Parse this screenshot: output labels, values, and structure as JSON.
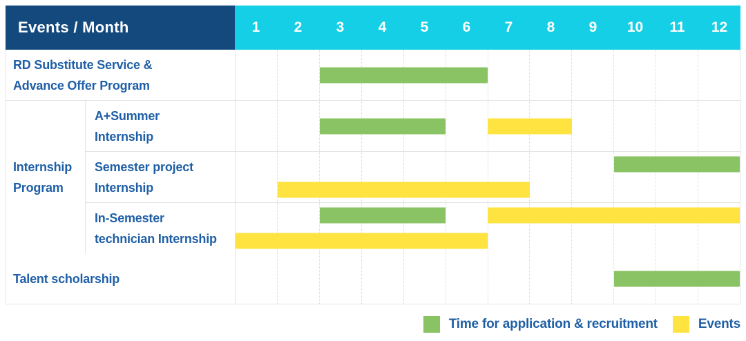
{
  "header": {
    "label": "Events / Month",
    "months": [
      "1",
      "2",
      "3",
      "4",
      "5",
      "6",
      "7",
      "8",
      "9",
      "10",
      "11",
      "12"
    ]
  },
  "group": {
    "label": "Internship\nProgram"
  },
  "rows": [
    {
      "label": "RD Substitute Service &\nAdvance Offer Program",
      "group": null,
      "lines": [
        [
          {
            "color": "green",
            "start": 3,
            "end": 6
          }
        ]
      ]
    },
    {
      "label": "A+Summer\nInternship",
      "group": "Internship Program",
      "lines": [
        [
          {
            "color": "green",
            "start": 3,
            "end": 5
          },
          {
            "color": "yellow",
            "start": 7,
            "end": 8
          }
        ]
      ]
    },
    {
      "label": "Semester project\nInternship",
      "group": "Internship Program",
      "lines": [
        [
          {
            "color": "green",
            "start": 10,
            "end": 12
          }
        ],
        [
          {
            "color": "yellow",
            "start": 2,
            "end": 7
          }
        ]
      ]
    },
    {
      "label": "In-Semester\ntechnician Internship",
      "group": "Internship Program",
      "lines": [
        [
          {
            "color": "green",
            "start": 3,
            "end": 5
          },
          {
            "color": "yellow",
            "start": 7,
            "end": 12
          }
        ],
        [
          {
            "color": "yellow",
            "start": 1,
            "end": 6
          }
        ]
      ]
    },
    {
      "label": "Talent scholarship",
      "group": null,
      "lines": [
        [
          {
            "color": "green",
            "start": 10,
            "end": 12
          }
        ]
      ]
    }
  ],
  "legend": [
    {
      "color": "green",
      "label": "Time for application & recruitment"
    },
    {
      "color": "yellow",
      "label": "Events"
    }
  ],
  "colors": {
    "header_bg": "#14497E",
    "months_bg": "#15CFE6",
    "green": "#8AC364",
    "yellow": "#FFE340",
    "text": "#1F5FA6",
    "border": "#E3E3E3",
    "grid_line": "#D9D9D9",
    "page_bg": "#FFFFFF"
  },
  "chart_data": {
    "type": "bar",
    "variant": "gantt",
    "title": "Events / Month",
    "x_label": "Month",
    "x_ticks": [
      "1",
      "2",
      "3",
      "4",
      "5",
      "6",
      "7",
      "8",
      "9",
      "10",
      "11",
      "12"
    ],
    "x_range": [
      1,
      12
    ],
    "grid": true,
    "legend_position": "bottom-right",
    "series": [
      {
        "name": "Time for application & recruitment",
        "color": "#8AC364"
      },
      {
        "name": "Events",
        "color": "#FFE340"
      }
    ],
    "tasks": [
      {
        "name": "RD Substitute Service & Advance Offer Program",
        "group": null,
        "spans": [
          {
            "series": "Time for application & recruitment",
            "start_month": 3,
            "end_month": 6
          }
        ]
      },
      {
        "name": "A+Summer Internship",
        "group": "Internship Program",
        "spans": [
          {
            "series": "Time for application & recruitment",
            "start_month": 3,
            "end_month": 5
          },
          {
            "series": "Events",
            "start_month": 7,
            "end_month": 8
          }
        ]
      },
      {
        "name": "Semester project Internship",
        "group": "Internship Program",
        "spans": [
          {
            "series": "Time for application & recruitment",
            "start_month": 10,
            "end_month": 12
          },
          {
            "series": "Events",
            "start_month": 2,
            "end_month": 7
          }
        ]
      },
      {
        "name": "In-Semester technician Internship",
        "group": "Internship Program",
        "spans": [
          {
            "series": "Time for application & recruitment",
            "start_month": 3,
            "end_month": 5
          },
          {
            "series": "Events",
            "start_month": 7,
            "end_month": 12
          },
          {
            "series": "Events",
            "start_month": 1,
            "end_month": 6
          }
        ]
      },
      {
        "name": "Talent scholarship",
        "group": null,
        "spans": [
          {
            "series": "Time for application & recruitment",
            "start_month": 10,
            "end_month": 12
          }
        ]
      }
    ]
  }
}
